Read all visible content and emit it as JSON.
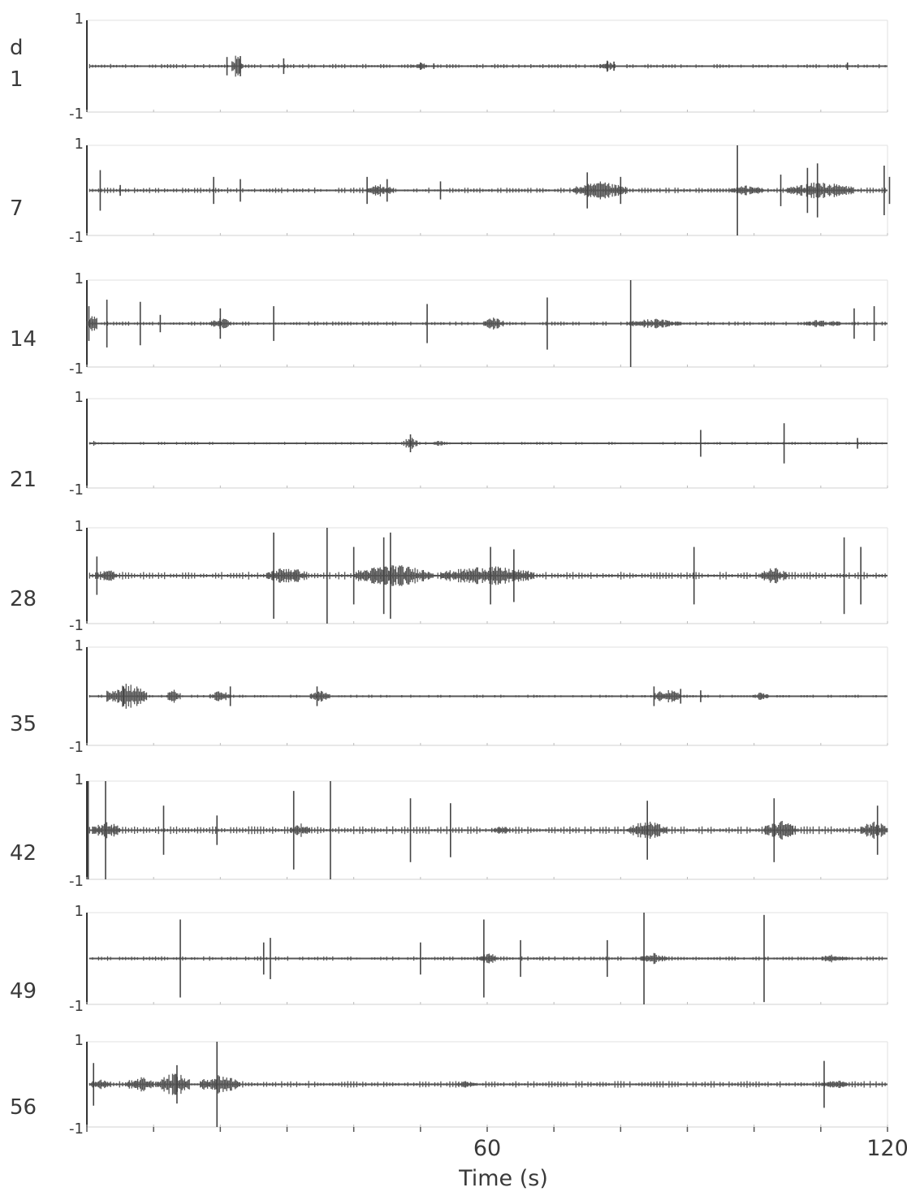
{
  "chart_data": {
    "type": "line",
    "header": "d",
    "xlabel": "Time (s)",
    "xlim": [
      0,
      120
    ],
    "xticks": [
      {
        "value": 60,
        "label": "60"
      },
      {
        "value": 120,
        "label": "120"
      }
    ],
    "ylim": [
      -1,
      1
    ],
    "yticks": [
      {
        "value": 1,
        "label": "1"
      },
      {
        "value": -1,
        "label": "-1"
      }
    ],
    "grid": false,
    "series": [
      {
        "name": "1",
        "spikes": [
          [
            21,
            0.2
          ],
          [
            23,
            0.22
          ],
          [
            29.5,
            0.17
          ],
          [
            50,
            0.08
          ],
          [
            52,
            0.06
          ],
          [
            78,
            0.12
          ],
          [
            79,
            0.1
          ],
          [
            114,
            0.08
          ]
        ],
        "noise": 0.03,
        "bursts": [
          [
            22.5,
            1.5,
            0.28
          ],
          [
            50,
            2.5,
            0.08
          ],
          [
            78,
            2,
            0.12
          ]
        ]
      },
      {
        "name": "7",
        "spikes": [
          [
            2,
            0.45
          ],
          [
            5,
            0.12
          ],
          [
            19,
            0.3
          ],
          [
            23,
            0.25
          ],
          [
            42,
            0.3
          ],
          [
            45,
            0.25
          ],
          [
            53,
            0.2
          ],
          [
            75,
            0.4
          ],
          [
            80,
            0.3
          ],
          [
            97.5,
            1.0
          ],
          [
            104,
            0.35
          ],
          [
            108,
            0.5
          ],
          [
            109.5,
            0.6
          ],
          [
            119.5,
            0.55
          ],
          [
            120.3,
            0.3
          ]
        ],
        "noise": 0.04,
        "bursts": [
          [
            44,
            4,
            0.15
          ],
          [
            77,
            8,
            0.2
          ],
          [
            99,
            5,
            0.12
          ],
          [
            110,
            10,
            0.2
          ]
        ]
      },
      {
        "name": "14",
        "spikes": [
          [
            0.3,
            0.4
          ],
          [
            3,
            0.55
          ],
          [
            8,
            0.5
          ],
          [
            11,
            0.2
          ],
          [
            20,
            0.35
          ],
          [
            28,
            0.4
          ],
          [
            51,
            0.45
          ],
          [
            69,
            0.6
          ],
          [
            81.5,
            1.0
          ],
          [
            115,
            0.35
          ],
          [
            118,
            0.4
          ]
        ],
        "noise": 0.03,
        "bursts": [
          [
            0.8,
            1.5,
            0.3
          ],
          [
            20,
            3,
            0.15
          ],
          [
            61,
            3,
            0.15
          ],
          [
            85,
            8,
            0.12
          ],
          [
            110,
            6,
            0.1
          ]
        ]
      },
      {
        "name": "21",
        "spikes": [
          [
            48.5,
            0.2
          ],
          [
            92,
            0.3
          ],
          [
            104.5,
            0.45
          ],
          [
            115.5,
            0.12
          ]
        ],
        "noise": 0.02,
        "bursts": [
          [
            1,
            1,
            0.06
          ],
          [
            48.5,
            2,
            0.15
          ],
          [
            53,
            2,
            0.08
          ]
        ]
      },
      {
        "name": "28",
        "spikes": [
          [
            1.5,
            0.4
          ],
          [
            28,
            0.9
          ],
          [
            36,
            1.0
          ],
          [
            40,
            0.6
          ],
          [
            44.5,
            0.8
          ],
          [
            45.5,
            0.9
          ],
          [
            60.5,
            0.6
          ],
          [
            64,
            0.55
          ],
          [
            91,
            0.6
          ],
          [
            113.5,
            0.8
          ],
          [
            116,
            0.6
          ]
        ],
        "noise": 0.05,
        "bursts": [
          [
            3,
            3,
            0.15
          ],
          [
            30,
            6,
            0.2
          ],
          [
            46,
            12,
            0.25
          ],
          [
            60,
            14,
            0.22
          ],
          [
            103,
            4,
            0.18
          ]
        ]
      },
      {
        "name": "35",
        "spikes": [
          [
            5.5,
            0.2
          ],
          [
            21.5,
            0.2
          ],
          [
            34.5,
            0.2
          ],
          [
            85,
            0.2
          ],
          [
            89,
            0.15
          ],
          [
            92,
            0.12
          ]
        ],
        "noise": 0.02,
        "bursts": [
          [
            6,
            6,
            0.3
          ],
          [
            13,
            2,
            0.15
          ],
          [
            20,
            3,
            0.12
          ],
          [
            35,
            3,
            0.12
          ],
          [
            87,
            4,
            0.15
          ],
          [
            101,
            2,
            0.1
          ]
        ]
      },
      {
        "name": "42",
        "spikes": [
          [
            0.2,
            1.0
          ],
          [
            2.8,
            1.0
          ],
          [
            11.5,
            0.5
          ],
          [
            19.5,
            0.3
          ],
          [
            31,
            0.8
          ],
          [
            36.5,
            1.0
          ],
          [
            48.5,
            0.65
          ],
          [
            54.5,
            0.55
          ],
          [
            84,
            0.6
          ],
          [
            103,
            0.65
          ],
          [
            118.5,
            0.5
          ]
        ],
        "noise": 0.05,
        "bursts": [
          [
            3,
            4,
            0.2
          ],
          [
            32,
            3,
            0.15
          ],
          [
            62,
            3,
            0.1
          ],
          [
            84,
            6,
            0.2
          ],
          [
            104,
            5,
            0.2
          ],
          [
            118,
            4,
            0.2
          ]
        ]
      },
      {
        "name": "49",
        "spikes": [
          [
            14,
            0.85
          ],
          [
            26.5,
            0.35
          ],
          [
            27.5,
            0.45
          ],
          [
            50,
            0.35
          ],
          [
            59.5,
            0.85
          ],
          [
            65,
            0.4
          ],
          [
            78,
            0.4
          ],
          [
            83.5,
            1.0
          ],
          [
            101.5,
            0.95
          ]
        ],
        "noise": 0.03,
        "bursts": [
          [
            60,
            3,
            0.15
          ],
          [
            85,
            4,
            0.12
          ],
          [
            112,
            4,
            0.1
          ]
        ]
      },
      {
        "name": "56",
        "spikes": [
          [
            1,
            0.5
          ],
          [
            13.5,
            0.45
          ],
          [
            19.5,
            1.0
          ],
          [
            110.5,
            0.55
          ]
        ],
        "noise": 0.05,
        "bursts": [
          [
            2,
            3,
            0.15
          ],
          [
            8,
            4,
            0.2
          ],
          [
            13,
            5,
            0.3
          ],
          [
            20,
            6,
            0.25
          ],
          [
            57,
            3,
            0.1
          ],
          [
            112,
            4,
            0.12
          ]
        ]
      }
    ]
  }
}
